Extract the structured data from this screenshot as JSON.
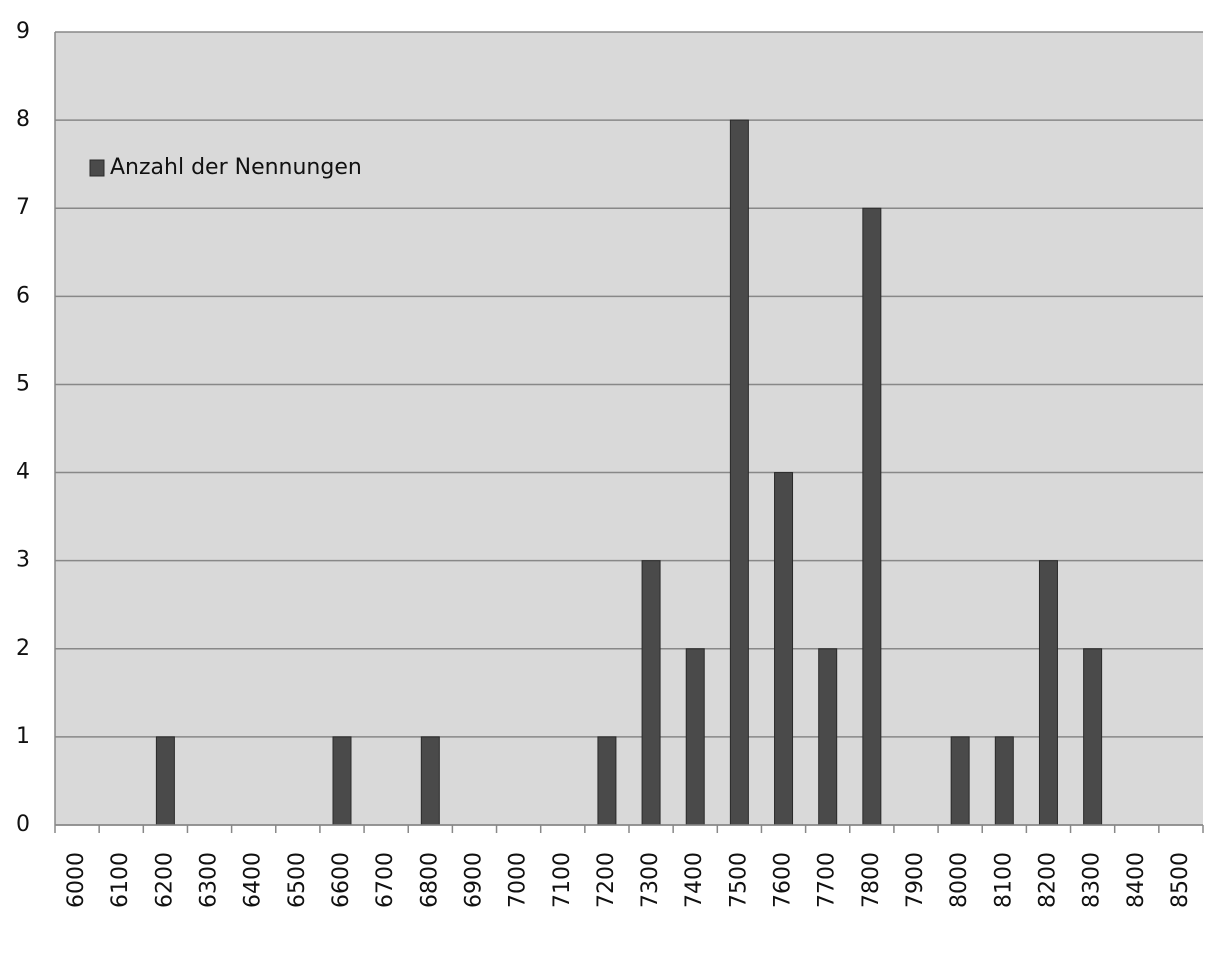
{
  "chart_data": {
    "type": "bar",
    "categories": [
      "6000",
      "6100",
      "6200",
      "6300",
      "6400",
      "6500",
      "6600",
      "6700",
      "6800",
      "6900",
      "7000",
      "7100",
      "7200",
      "7300",
      "7400",
      "7500",
      "7600",
      "7700",
      "7800",
      "7900",
      "8000",
      "8100",
      "8200",
      "8300",
      "8400",
      "8500"
    ],
    "series": [
      {
        "name": "Anzahl der Nennungen",
        "color": "#4a4a4a",
        "values": [
          0,
          0,
          1,
          0,
          0,
          0,
          1,
          0,
          1,
          0,
          0,
          0,
          1,
          3,
          2,
          8,
          4,
          2,
          7,
          0,
          1,
          1,
          3,
          2,
          0,
          0
        ]
      }
    ],
    "ylim": [
      0,
      9
    ],
    "yticks": [
      0,
      1,
      2,
      3,
      4,
      5,
      6,
      7,
      8,
      9
    ],
    "grid": true,
    "legend": "top-left"
  }
}
